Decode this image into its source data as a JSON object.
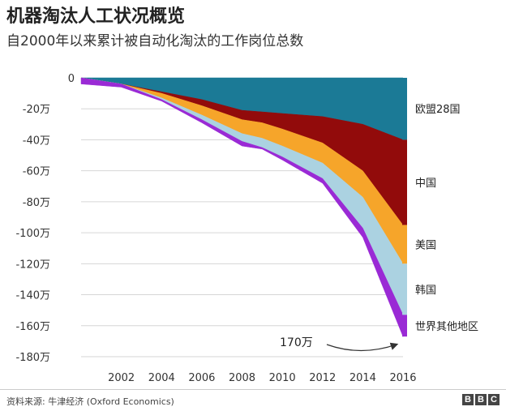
{
  "title": "机器淘汰人工状况概览",
  "subtitle": "自2000年以来累计被自动化淘汰的工作岗位总数",
  "source": "资料来源: 牛津经济 (Oxford Economics)",
  "brand": [
    "B",
    "B",
    "C"
  ],
  "chart_data": {
    "type": "area",
    "title": "机器淘汰人工状况概览",
    "subtitle": "自2000年以来累计被自动化淘汰的工作岗位总数",
    "x": [
      2000,
      2002,
      2004,
      2006,
      2008,
      2009,
      2010,
      2012,
      2014,
      2016
    ],
    "x_ticks": [
      2002,
      2004,
      2006,
      2008,
      2010,
      2012,
      2014,
      2016
    ],
    "xlim": [
      2000,
      2016
    ],
    "ylim": [
      -180,
      0
    ],
    "y_unit": "万",
    "y_ticks": [
      0,
      -20,
      -40,
      -60,
      -80,
      -100,
      -120,
      -140,
      -160,
      -180
    ],
    "y_tick_labels": [
      "0",
      "-20万",
      "-40万",
      "-60万",
      "-80万",
      "-100万",
      "-120万",
      "-140万",
      "-160万",
      "-180万"
    ],
    "stacking": "stacked_negative",
    "series": [
      {
        "name": "欧盟28国",
        "color": "#1b7a96",
        "values": [
          0,
          -4,
          -9,
          -14,
          -21,
          -22,
          -23,
          -25,
          -30,
          -40
        ]
      },
      {
        "name": "中国",
        "color": "#920b0b",
        "values": [
          0,
          0,
          -1,
          -4,
          -6,
          -7,
          -10,
          -17,
          -30,
          -55
        ]
      },
      {
        "name": "美国",
        "color": "#f6a52a",
        "values": [
          0,
          0,
          -3,
          -6,
          -9,
          -10,
          -11,
          -13,
          -17,
          -25
        ]
      },
      {
        "name": "韩国",
        "color": "#abd2e1",
        "values": [
          0,
          0,
          -1,
          -3,
          -5,
          -6,
          -7,
          -10,
          -20,
          -33
        ]
      },
      {
        "name": "世界其他地区",
        "color": "#9a2ad5",
        "values": [
          -4,
          -2,
          -1,
          -2,
          -3,
          -1,
          -2,
          -3,
          -6,
          -14
        ]
      }
    ],
    "annotations": [
      {
        "text": "170万",
        "x": 2016,
        "y": -170
      }
    ]
  }
}
